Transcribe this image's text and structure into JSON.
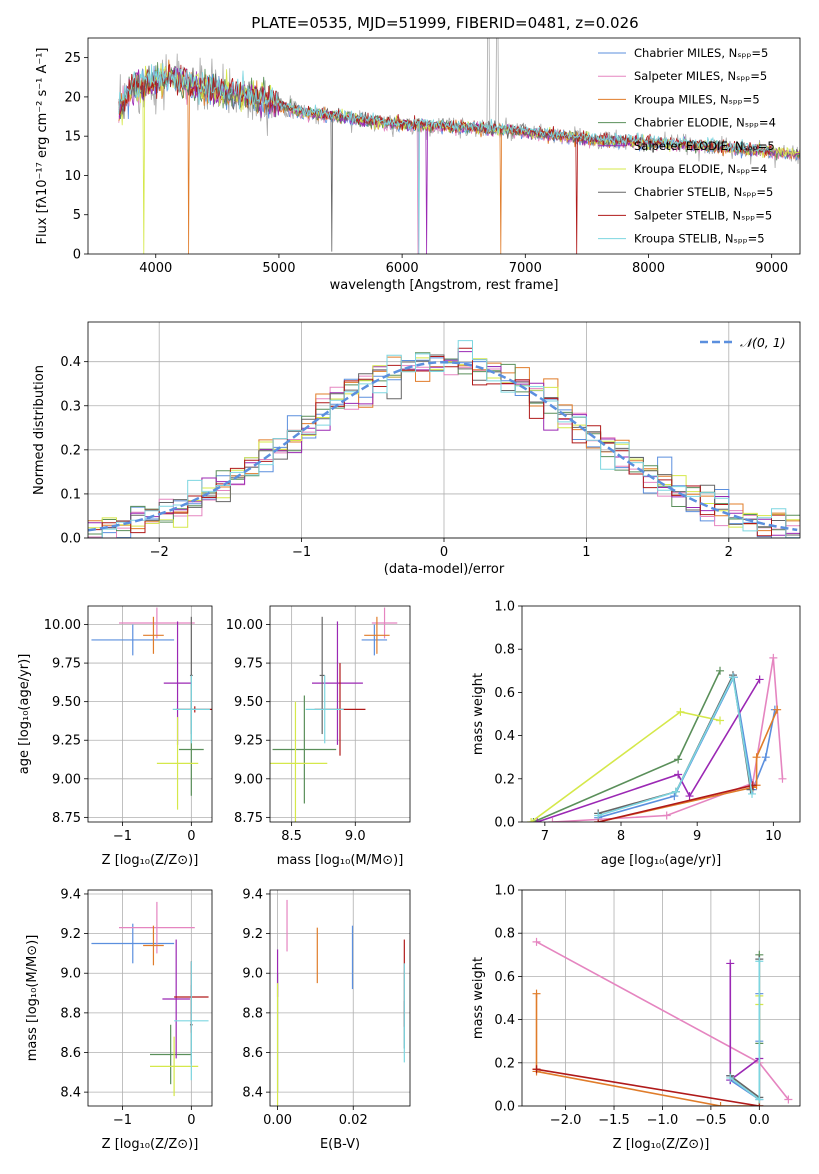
{
  "colors": {
    "chabrier_miles": "#5b8fde",
    "salpeter_miles": "#e585c0",
    "kroupa_miles": "#e07c2a",
    "chabrier_elodie": "#5a8f5a",
    "salpeter_elodie": "#9b28b4",
    "kroupa_elodie": "#d5e84a",
    "chabrier_stelib": "#666666",
    "salpeter_stelib": "#b01a1a",
    "kroupa_stelib": "#7dd6e0",
    "normal": "#5b8fde",
    "data": "#aaaaaa"
  },
  "chart_data": [
    {
      "type": "line",
      "title": "PLATE=0535, MJD=51999, FIBERID=0481, z=0.026",
      "xlabel": "wavelength [Angstrom, rest frame]",
      "ylabel": "Flux [fλ10⁻¹⁷ erg cm⁻² s⁻¹ A⁻¹]",
      "xlim": [
        3450,
        9230
      ],
      "ylim": [
        0,
        27.5
      ],
      "xticks": [
        4000,
        5000,
        6000,
        7000,
        8000,
        9000
      ],
      "yticks": [
        0,
        5,
        10,
        15,
        20,
        25
      ],
      "grid": false,
      "legend_position": "top-right",
      "legend": [
        "Chabrier MILES, Nₛₚₚ=5",
        "Salpeter MILES, Nₛₚₚ=5",
        "Kroupa MILES, Nₛₚₚ=5",
        "Chabrier ELODIE, Nₛₚₚ=4",
        "Salpeter ELODIE, Nₛₚₚ=5",
        "Kroupa ELODIE, Nₛₚₚ=4",
        "Chabrier STELIB, Nₛₚₚ=5",
        "Salpeter STELIB, Nₛₚₚ=5",
        "Kroupa STELIB, Nₛₚₚ=5"
      ],
      "continuum": {
        "x": [
          3700,
          3800,
          3900,
          4000,
          4100,
          4200,
          4400,
          4600,
          4800,
          5000,
          5200,
          5500,
          5800,
          6000,
          6300,
          6600,
          6800,
          7000,
          7300,
          7600,
          8000,
          8400,
          8800,
          9230
        ],
        "y": [
          18.0,
          21.0,
          21.5,
          22.0,
          22.5,
          22.0,
          21.0,
          20.5,
          20.0,
          19.0,
          18.0,
          17.5,
          16.8,
          16.5,
          16.3,
          16.0,
          15.8,
          15.5,
          15.0,
          14.5,
          14.2,
          13.8,
          13.3,
          12.8
        ]
      },
      "gaps": [
        {
          "x": 3903,
          "series": "kroupa_elodie",
          "depth": 0
        },
        {
          "x": 4270,
          "series": "kroupa_miles",
          "depth": 0
        },
        {
          "x": 5430,
          "series": "chabrier_stelib",
          "depth": 0.3
        },
        {
          "x": 6130,
          "series": "salpeter_miles",
          "depth": 0
        },
        {
          "x": 6135,
          "series": "kroupa_stelib",
          "depth": 0
        },
        {
          "x": 6200,
          "series": "salpeter_elodie",
          "depth": 0
        },
        {
          "x": 6800,
          "series": "kroupa_miles",
          "depth": 0
        },
        {
          "x": 7420,
          "series": "salpeter_stelib",
          "depth": 0
        }
      ]
    },
    {
      "type": "bar",
      "xlabel": "(data-model)/error",
      "ylabel": "Normed distribution",
      "xlim": [
        -2.5,
        2.5
      ],
      "ylim": [
        0,
        0.49
      ],
      "xticks": [
        -2,
        -1,
        0,
        1,
        2
      ],
      "yticks": [
        0.0,
        0.1,
        0.2,
        0.3,
        0.4
      ],
      "grid": true,
      "legend_position": "top-right",
      "legend": [
        "𝒩(0, 1)"
      ],
      "bin_width": 0.1
    },
    {
      "type": "scatter",
      "xlabel": "Z [log₁₀(Z/Z⊙)]",
      "ylabel": "age  [log₁₀(age/yr)]",
      "xlim": [
        -1.5,
        0.3
      ],
      "ylim": [
        8.72,
        10.12
      ],
      "xticks": [
        -1,
        0
      ],
      "yticks": [
        8.75,
        9.0,
        9.25,
        9.5,
        9.75,
        10.0
      ],
      "grid": true,
      "points": [
        {
          "series": "chabrier_miles",
          "x": -0.85,
          "y": 9.9,
          "xerr": 0.6,
          "yerr": 0.1
        },
        {
          "series": "salpeter_miles",
          "x": -0.5,
          "y": 10.01,
          "xerr": 0.55,
          "yerr": 0.1
        },
        {
          "series": "kroupa_miles",
          "x": -0.55,
          "y": 9.93,
          "xerr": 0.15,
          "yerr": 0.12
        },
        {
          "series": "chabrier_elodie",
          "x": 0.0,
          "y": 9.19,
          "xerr": 0.18,
          "yerr": 0.3
        },
        {
          "series": "salpeter_elodie",
          "x": -0.2,
          "y": 9.62,
          "xerr": 0.2,
          "yerr": 0.4
        },
        {
          "series": "kroupa_elodie",
          "x": -0.2,
          "y": 9.1,
          "xerr": 0.3,
          "yerr": 0.3
        },
        {
          "series": "chabrier_stelib",
          "x": 0.0,
          "y": 9.67,
          "xerr": 0.02,
          "yerr": 0.38
        },
        {
          "series": "salpeter_stelib",
          "x": 0.05,
          "y": 9.45,
          "xerr": 0.27,
          "yerr": 0.02
        },
        {
          "series": "kroupa_stelib",
          "x": 0.0,
          "y": 9.45,
          "xerr": 0.27,
          "yerr": 0.22
        }
      ]
    },
    {
      "type": "scatter",
      "xlabel": "mass [log₁₀(M/M⊙)]",
      "ylabel": "",
      "xlim": [
        8.33,
        9.43
      ],
      "ylim": [
        8.72,
        10.12
      ],
      "xticks": [
        8.5,
        9.0
      ],
      "yticks": [
        8.75,
        9.0,
        9.25,
        9.5,
        9.75,
        10.0
      ],
      "grid": true,
      "points": [
        {
          "series": "chabrier_miles",
          "x": 9.15,
          "y": 9.9,
          "xerr": 0.1,
          "yerr": 0.1
        },
        {
          "series": "salpeter_miles",
          "x": 9.23,
          "y": 10.01,
          "xerr": 0.1,
          "yerr": 0.1
        },
        {
          "series": "kroupa_miles",
          "x": 9.17,
          "y": 9.93,
          "xerr": 0.1,
          "yerr": 0.12
        },
        {
          "series": "chabrier_elodie",
          "x": 8.6,
          "y": 9.19,
          "xerr": 0.25,
          "yerr": 0.35
        },
        {
          "series": "salpeter_elodie",
          "x": 8.86,
          "y": 9.62,
          "xerr": 0.2,
          "yerr": 0.4
        },
        {
          "series": "kroupa_elodie",
          "x": 8.53,
          "y": 9.1,
          "xerr": 0.25,
          "yerr": 0.4
        },
        {
          "series": "chabrier_stelib",
          "x": 8.74,
          "y": 9.67,
          "xerr": 0.02,
          "yerr": 0.38
        },
        {
          "series": "salpeter_stelib",
          "x": 8.88,
          "y": 9.45,
          "xerr": 0.2,
          "yerr": 0.3
        },
        {
          "series": "kroupa_stelib",
          "x": 8.76,
          "y": 9.45,
          "xerr": 0.15,
          "yerr": 0.22
        }
      ]
    },
    {
      "type": "line",
      "xlabel": "age  [log₁₀(age/yr)]",
      "ylabel": "mass weight",
      "xlim": [
        6.7,
        10.35
      ],
      "ylim": [
        0,
        1.0
      ],
      "xticks": [
        7,
        8,
        9,
        10
      ],
      "yticks": [
        0.0,
        0.2,
        0.4,
        0.6,
        0.8,
        1.0
      ],
      "grid": false,
      "series": [
        {
          "color": "chabrier_miles",
          "x": [
            7.7,
            8.7,
            9.48,
            9.73,
            9.9,
            10.02
          ],
          "y": [
            0.02,
            0.12,
            0.67,
            0.15,
            0.3,
            0.52
          ]
        },
        {
          "color": "salpeter_miles",
          "x": [
            7.1,
            8.6,
            9.73,
            10.0,
            10.12
          ],
          "y": [
            0.0,
            0.03,
            0.18,
            0.76,
            0.2
          ]
        },
        {
          "color": "kroupa_miles",
          "x": [
            7.7,
            9.73,
            9.78,
            9.78,
            10.05
          ],
          "y": [
            0.0,
            0.16,
            0.17,
            0.3,
            0.52
          ]
        },
        {
          "color": "chabrier_elodie",
          "x": [
            6.85,
            8.75,
            9.3
          ],
          "y": [
            0.0,
            0.29,
            0.7
          ]
        },
        {
          "color": "salpeter_elodie",
          "x": [
            6.9,
            8.75,
            8.9,
            9.82
          ],
          "y": [
            0.0,
            0.22,
            0.12,
            0.66
          ]
        },
        {
          "color": "kroupa_elodie",
          "x": [
            6.82,
            8.78,
            9.3
          ],
          "y": [
            0.0,
            0.51,
            0.47
          ]
        },
        {
          "color": "chabrier_stelib",
          "x": [
            7.7,
            8.72,
            9.47,
            9.7
          ],
          "y": [
            0.04,
            0.14,
            0.68,
            0.15
          ]
        },
        {
          "color": "salpeter_stelib",
          "x": [
            7.7,
            9.73
          ],
          "y": [
            0.0,
            0.17
          ]
        },
        {
          "color": "kroupa_stelib",
          "x": [
            7.7,
            8.72,
            9.47,
            9.72
          ],
          "y": [
            0.03,
            0.14,
            0.67,
            0.13
          ]
        }
      ]
    },
    {
      "type": "scatter",
      "xlabel": "Z [log₁₀(Z/Z⊙)]",
      "ylabel": "mass [log₁₀(M/M⊙)]",
      "xlim": [
        -1.5,
        0.3
      ],
      "ylim": [
        8.33,
        9.42
      ],
      "xticks": [
        -1,
        0
      ],
      "yticks": [
        8.4,
        8.6,
        8.8,
        9.0,
        9.2,
        9.4
      ],
      "grid": true,
      "points": [
        {
          "series": "chabrier_miles",
          "x": -0.85,
          "y": 9.15,
          "xerr": 0.6,
          "yerr": 0.1
        },
        {
          "series": "salpeter_miles",
          "x": -0.5,
          "y": 9.23,
          "xerr": 0.55,
          "yerr": 0.13
        },
        {
          "series": "kroupa_miles",
          "x": -0.55,
          "y": 9.14,
          "xerr": 0.15,
          "yerr": 0.1
        },
        {
          "series": "chabrier_elodie",
          "x": -0.3,
          "y": 8.59,
          "xerr": 0.3,
          "yerr": 0.15
        },
        {
          "series": "salpeter_elodie",
          "x": -0.22,
          "y": 8.87,
          "xerr": 0.2,
          "yerr": 0.3
        },
        {
          "series": "kroupa_elodie",
          "x": -0.25,
          "y": 8.53,
          "xerr": 0.35,
          "yerr": 0.15
        },
        {
          "series": "chabrier_stelib",
          "x": 0.0,
          "y": 8.74,
          "xerr": 0.02,
          "yerr": 0.2
        },
        {
          "series": "salpeter_stelib",
          "x": 0.0,
          "y": 8.88,
          "xerr": 0.25,
          "yerr": 0.18
        },
        {
          "series": "kroupa_stelib",
          "x": 0.0,
          "y": 8.76,
          "xerr": 0.25,
          "yerr": 0.3
        }
      ]
    },
    {
      "type": "scatter",
      "xlabel": "E(B-V)",
      "ylabel": "",
      "xlim": [
        -0.002,
        0.035
      ],
      "ylim": [
        8.33,
        9.42
      ],
      "xticks": [
        0.0,
        0.02
      ],
      "yticks": [
        8.4,
        8.6,
        8.8,
        9.0,
        9.2,
        9.4
      ],
      "grid": true,
      "points": [
        {
          "series": "chabrier_miles",
          "x": 0.0198,
          "y": 9.08,
          "yerr": 0.16
        },
        {
          "series": "salpeter_miles",
          "x": 0.0025,
          "y": 9.24,
          "yerr": 0.13
        },
        {
          "series": "kroupa_miles",
          "x": 0.0105,
          "y": 9.09,
          "yerr": 0.14
        },
        {
          "series": "chabrier_elodie",
          "x": 0.0,
          "y": 8.7,
          "yerr": 0.3
        },
        {
          "series": "salpeter_elodie",
          "x": 0.0,
          "y": 9.0,
          "yerr": 0.12
        },
        {
          "series": "kroupa_elodie",
          "x": 0.0,
          "y": 8.6,
          "yerr": 0.35
        },
        {
          "series": "chabrier_stelib",
          "x": 0.0335,
          "y": 8.74,
          "yerr": 0.12
        },
        {
          "series": "salpeter_stelib",
          "x": 0.0335,
          "y": 8.95,
          "yerr": 0.22
        },
        {
          "series": "kroupa_stelib",
          "x": 0.0335,
          "y": 8.8,
          "yerr": 0.25
        }
      ]
    },
    {
      "type": "line",
      "xlabel": "Z [log₁₀(Z/Z⊙)]",
      "ylabel": "mass weight",
      "xlim": [
        -2.45,
        0.42
      ],
      "ylim": [
        0,
        1.0
      ],
      "xticks": [
        -2.0,
        -1.5,
        -1.0,
        -0.5,
        0.0
      ],
      "yticks": [
        0.0,
        0.2,
        0.4,
        0.6,
        0.8,
        1.0
      ],
      "grid": true,
      "series": [
        {
          "color": "chabrier_miles",
          "x": [
            -0.3,
            -0.3,
            0.0,
            0.0,
            0.0
          ],
          "y": [
            0.14,
            0.12,
            0.03,
            0.3,
            0.52
          ]
        },
        {
          "color": "salpeter_miles",
          "x": [
            -2.3,
            0.0,
            0.3
          ],
          "y": [
            0.76,
            0.2,
            0.03
          ]
        },
        {
          "color": "kroupa_miles",
          "x": [
            -2.3,
            -2.3,
            -2.3,
            -0.4,
            0.0
          ],
          "y": [
            0.52,
            0.17,
            0.16,
            0.0,
            0.0
          ]
        },
        {
          "color": "chabrier_elodie",
          "x": [
            0.0,
            0.0
          ],
          "y": [
            0.7,
            0.29
          ]
        },
        {
          "color": "salpeter_elodie",
          "x": [
            -0.3,
            -0.3,
            0.0,
            0.0
          ],
          "y": [
            0.66,
            0.12,
            0.22,
            0.0
          ]
        },
        {
          "color": "kroupa_elodie",
          "x": [
            0.0,
            0.0,
            0.0
          ],
          "y": [
            0.51,
            0.47,
            0.0
          ]
        },
        {
          "color": "chabrier_stelib",
          "x": [
            -0.3,
            0.0,
            0.0
          ],
          "y": [
            0.14,
            0.04,
            0.68
          ]
        },
        {
          "color": "salpeter_stelib",
          "x": [
            -2.3,
            0.0
          ],
          "y": [
            0.17,
            0.0
          ]
        },
        {
          "color": "kroupa_stelib",
          "x": [
            -0.3,
            0.0,
            0.0
          ],
          "y": [
            0.13,
            0.03,
            0.67
          ]
        }
      ]
    }
  ]
}
